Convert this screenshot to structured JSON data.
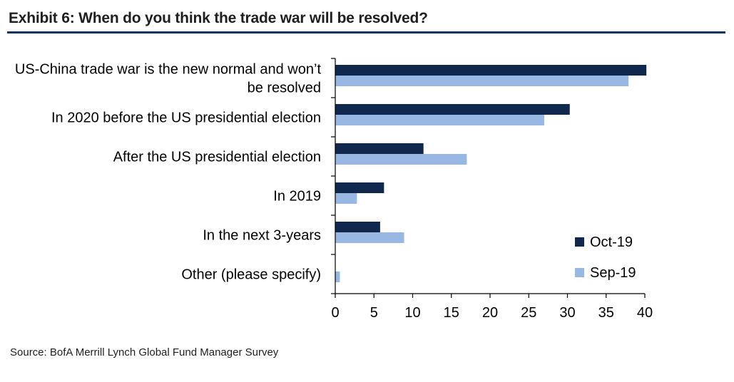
{
  "header": {
    "title": "Exhibit 6: When do you think the trade war will be resolved?"
  },
  "footer": {
    "source": "Source: BofA Merrill Lynch Global Fund Manager Survey"
  },
  "chart_data": {
    "type": "bar",
    "orientation": "horizontal",
    "title": "Exhibit 6: When do you think the trade war will be resolved?",
    "categories": [
      [
        "US-China trade war is the new normal and won’t",
        "be resolved"
      ],
      [
        "In 2020 before the US presidential election"
      ],
      [
        "After the US presidential election"
      ],
      [
        "In 2019"
      ],
      [
        "In the next 3-years"
      ],
      [
        "Other (please specify)"
      ]
    ],
    "series": [
      {
        "name": "Oct-19",
        "color": "#10284e",
        "values": [
          40.2,
          30.3,
          11.4,
          6.3,
          5.8,
          0
        ]
      },
      {
        "name": "Sep-19",
        "color": "#98b8e3",
        "values": [
          37.9,
          27.0,
          17.0,
          2.8,
          8.9,
          0.6
        ]
      }
    ],
    "xlim": [
      0,
      40
    ],
    "xticks": [
      0,
      5,
      10,
      15,
      20,
      25,
      30,
      35,
      40
    ],
    "xlabel": "",
    "ylabel": "",
    "legend_position": "bottom-right",
    "grid": false
  }
}
